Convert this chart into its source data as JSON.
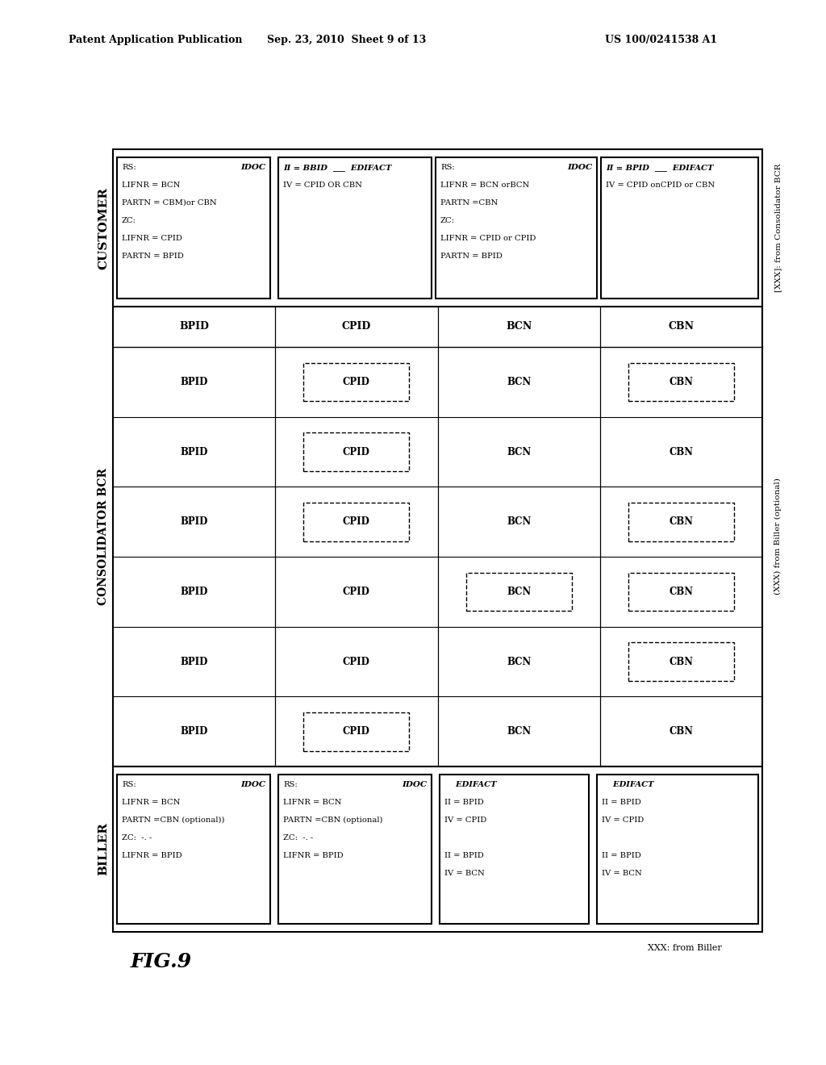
{
  "bg_color": "#ffffff",
  "header_left": "Patent Application Publication",
  "header_center": "Sep. 23, 2010  Sheet 9 of 13",
  "header_right": "US 100/0241538 A1",
  "fig_label": "FIG.9"
}
